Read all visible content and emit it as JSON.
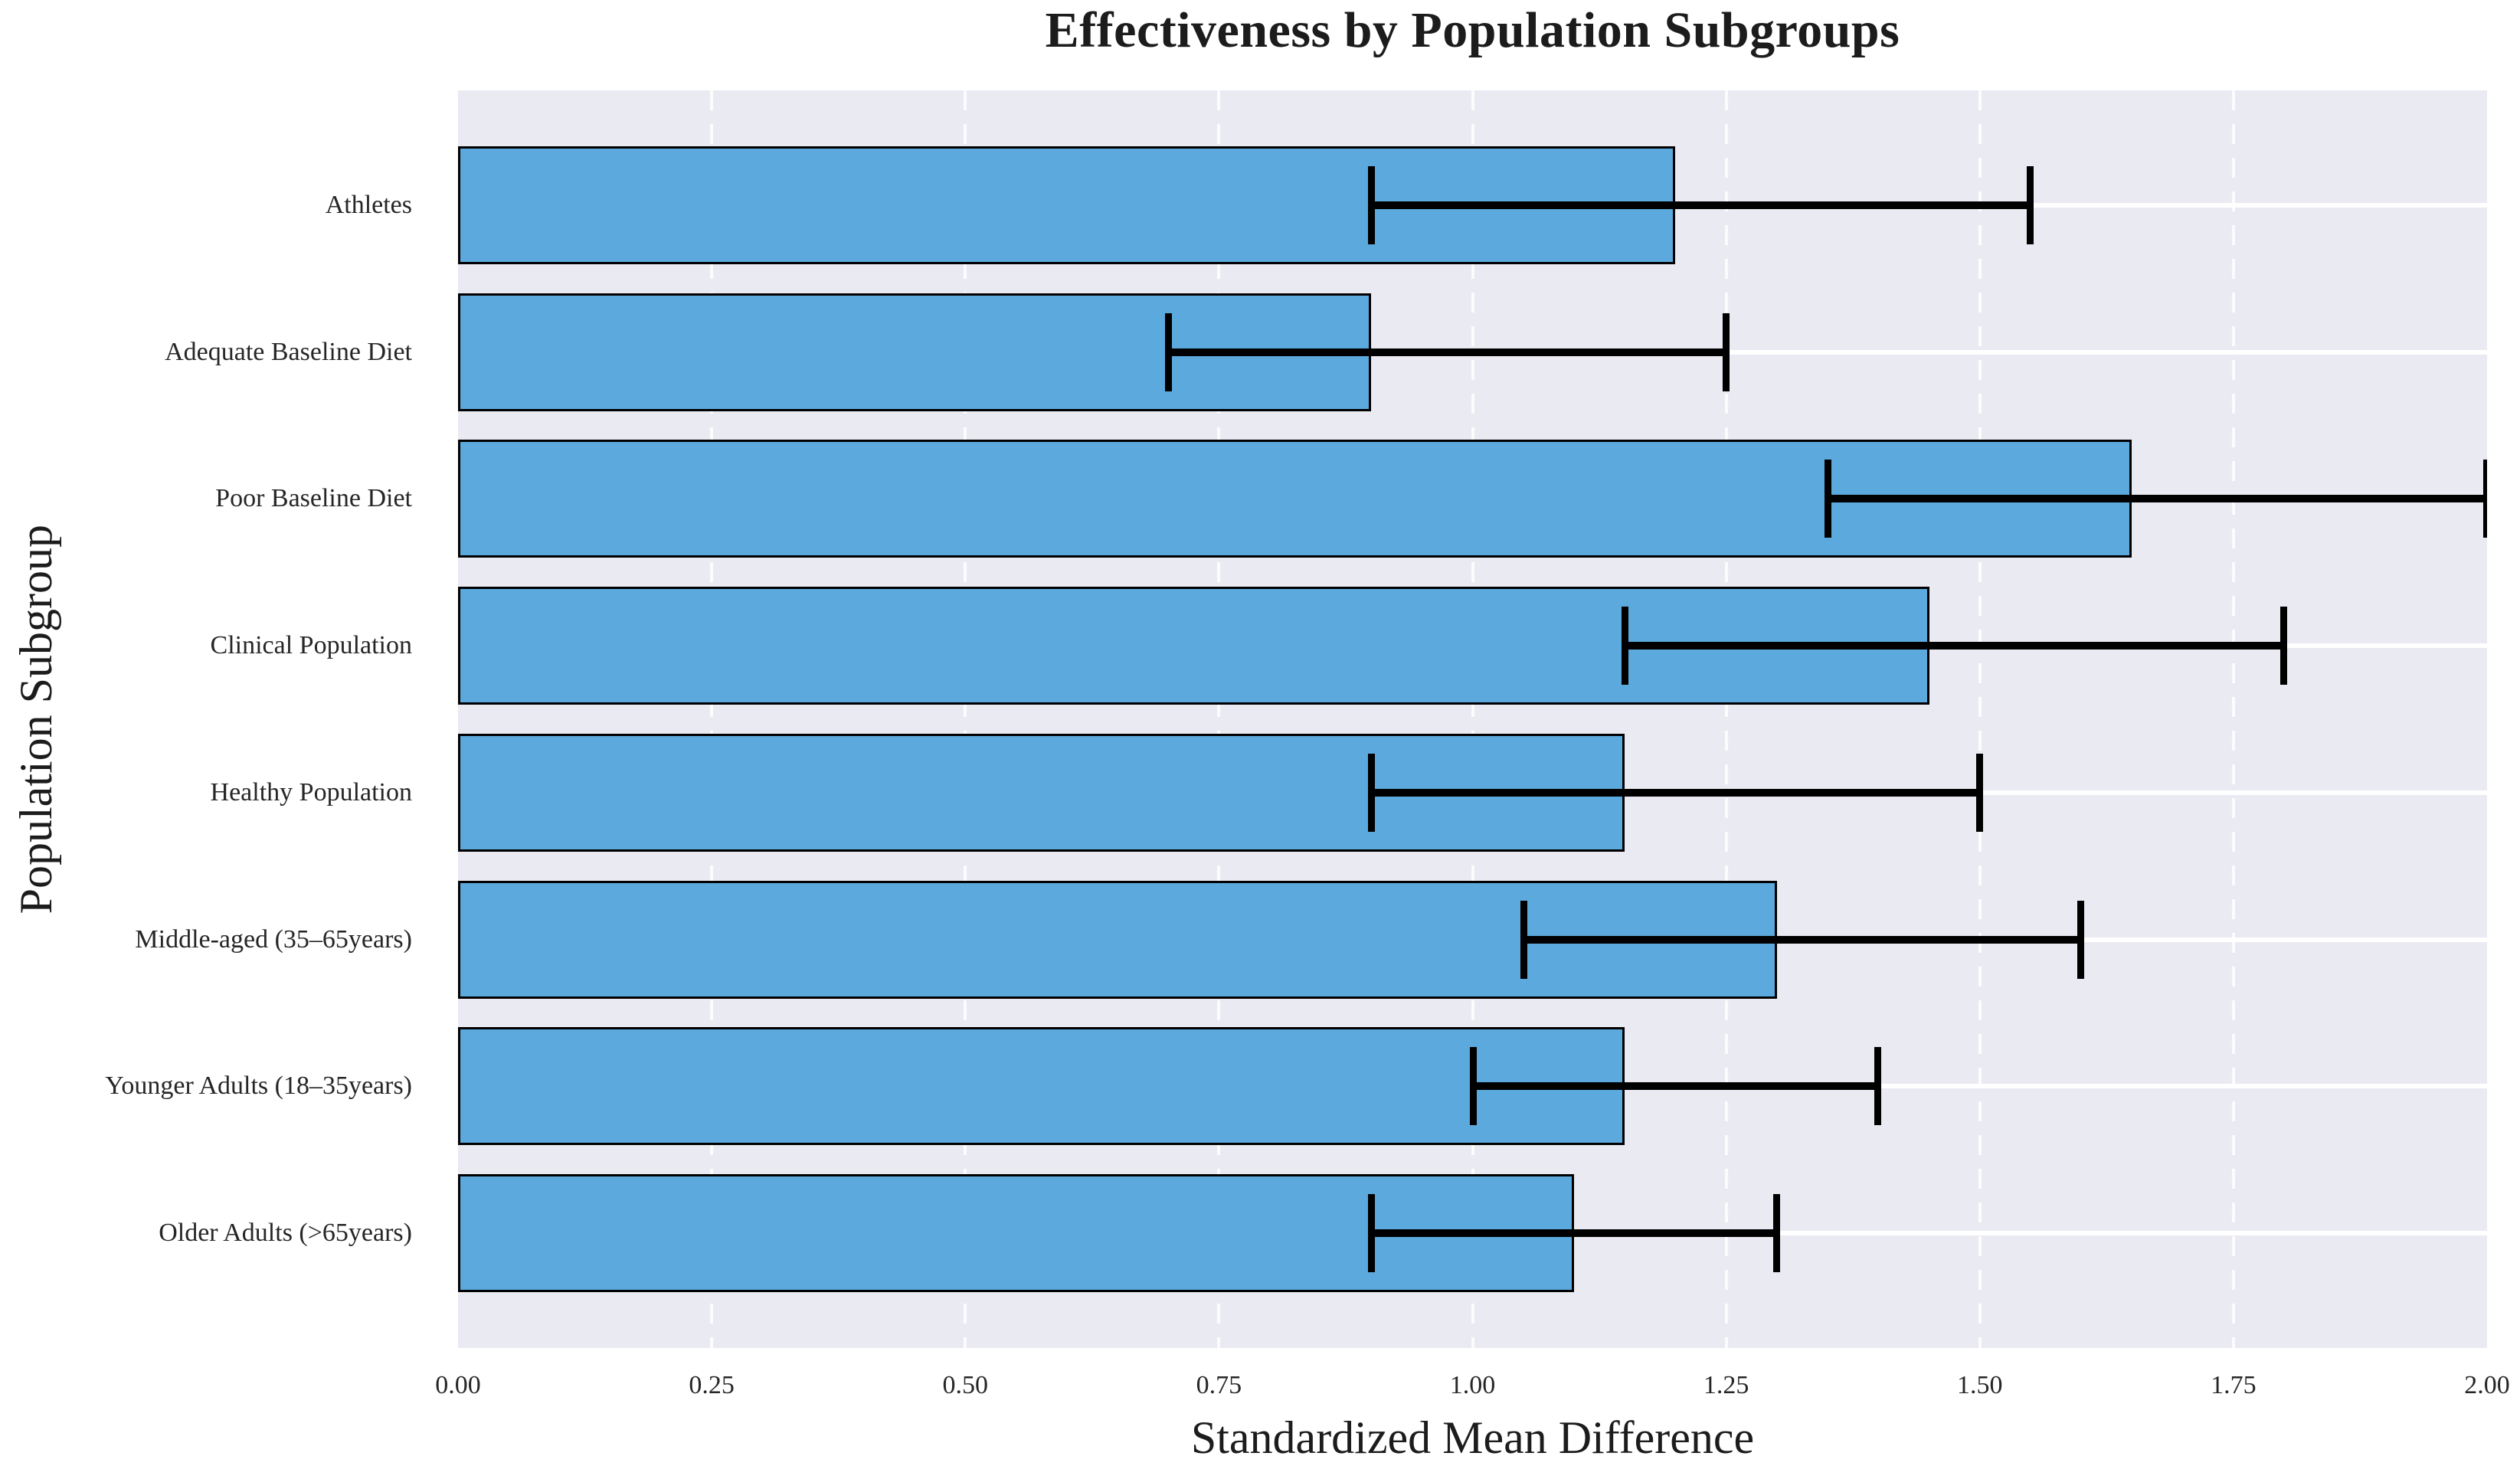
{
  "chart_data": {
    "type": "bar",
    "orientation": "horizontal",
    "title": "Effectiveness by Population Subgroups",
    "xlabel": "Standardized Mean Difference",
    "ylabel": "Population Subgroup",
    "xlim": [
      0,
      2
    ],
    "xticks": [
      "0.00",
      "0.25",
      "0.50",
      "0.75",
      "1.00",
      "1.25",
      "1.50",
      "1.75",
      "2.00"
    ],
    "xtick_values": [
      0,
      0.25,
      0.5,
      0.75,
      1.0,
      1.25,
      1.5,
      1.75,
      2.0
    ],
    "grid": true,
    "legend": "none",
    "categories": [
      "Athletes",
      "Adequate Baseline Diet",
      "Poor Baseline Diet",
      "Clinical Population",
      "Healthy Population",
      "Middle-aged (35–65years)",
      "Younger Adults (18–35years)",
      "Older Adults (>65years)"
    ],
    "series": [
      {
        "name": "Standardized Mean Difference",
        "values": [
          1.2,
          0.9,
          1.65,
          1.45,
          1.15,
          1.3,
          1.15,
          1.1
        ],
        "ci_low": [
          0.9,
          0.7,
          1.35,
          1.15,
          0.9,
          1.05,
          1.0,
          0.9
        ],
        "ci_high": [
          1.55,
          1.25,
          2.0,
          1.8,
          1.5,
          1.6,
          1.4,
          1.3
        ]
      }
    ],
    "colors": {
      "bar_fill": "#5BA9DD",
      "bar_edge": "#000000",
      "error_bar": "#000000",
      "plot_background": "#EAEAF2",
      "gridline": "#FFFFFF",
      "text": "#262626"
    }
  }
}
